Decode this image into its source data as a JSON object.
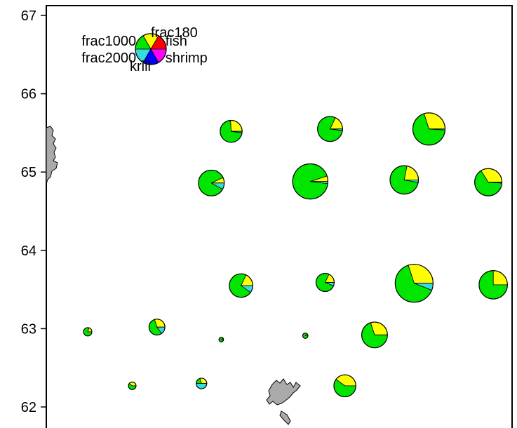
{
  "chart_data": {
    "type": "pie",
    "subtype": "pie-map",
    "title": "",
    "xlabel": "",
    "ylabel": "",
    "ylim": [
      61.8,
      67.1
    ],
    "y_ticks": [
      {
        "value": 62,
        "label": "62"
      },
      {
        "value": 63,
        "label": "63"
      },
      {
        "value": 64,
        "label": "64"
      },
      {
        "value": 65,
        "label": "65"
      },
      {
        "value": 66,
        "label": "66"
      },
      {
        "value": 67,
        "label": "67"
      }
    ],
    "grid": false,
    "legend_position": "top-left",
    "categories": [
      "fish",
      "frac180",
      "frac1000",
      "frac2000",
      "krill",
      "shrimp"
    ],
    "colors": {
      "fish": "#ff0000",
      "frac180": "#ffff00",
      "frac1000": "#00e600",
      "frac2000": "#33dddd",
      "krill": "#0000ff",
      "shrimp": "#ff00ff"
    },
    "land_color": "#aaaaaa",
    "land_features": [
      "shetland-land",
      "faroe-land"
    ],
    "legend": {
      "items": [
        {
          "label": "fish",
          "category": "fish"
        },
        {
          "label": "frac180",
          "category": "frac180"
        },
        {
          "label": "frac1000",
          "category": "frac1000"
        },
        {
          "label": "frac2000",
          "category": "frac2000"
        },
        {
          "label": "krill",
          "category": "krill"
        },
        {
          "label": "shrimp",
          "category": "shrimp"
        }
      ]
    },
    "stations": [
      {
        "lon_index": 3,
        "lat": 65.52,
        "size": 0.58,
        "values": {
          "fish": 0,
          "frac180": 0.26,
          "frac1000": 0.72,
          "frac2000": 0.02,
          "krill": 0,
          "shrimp": 0
        }
      },
      {
        "lon_index": 5,
        "lat": 65.55,
        "size": 0.66,
        "values": {
          "fish": 0,
          "frac180": 0.18,
          "frac1000": 0.8,
          "frac2000": 0.02,
          "krill": 0,
          "shrimp": 0
        }
      },
      {
        "lon_index": 7,
        "lat": 65.55,
        "size": 0.85,
        "values": {
          "fish": 0,
          "frac180": 0.3,
          "frac1000": 0.69,
          "frac2000": 0.01,
          "krill": 0,
          "shrimp": 0
        }
      },
      {
        "lon_index": 2.6,
        "lat": 64.86,
        "size": 0.68,
        "values": {
          "fish": 0,
          "frac180": 0.07,
          "frac1000": 0.85,
          "frac2000": 0.08,
          "krill": 0,
          "shrimp": 0
        }
      },
      {
        "lon_index": 4.6,
        "lat": 64.88,
        "size": 0.93,
        "values": {
          "fish": 0,
          "frac180": 0.05,
          "frac1000": 0.93,
          "frac2000": 0.02,
          "krill": 0,
          "shrimp": 0
        }
      },
      {
        "lon_index": 6.5,
        "lat": 64.9,
        "size": 0.75,
        "values": {
          "fish": 0,
          "frac180": 0.22,
          "frac1000": 0.75,
          "frac2000": 0.03,
          "krill": 0,
          "shrimp": 0
        }
      },
      {
        "lon_index": 8.2,
        "lat": 64.87,
        "size": 0.72,
        "values": {
          "fish": 0,
          "frac180": 0.34,
          "frac1000": 0.65,
          "frac2000": 0.01,
          "krill": 0,
          "shrimp": 0
        }
      },
      {
        "lon_index": 3.2,
        "lat": 63.55,
        "size": 0.62,
        "values": {
          "fish": 0,
          "frac180": 0.18,
          "frac1000": 0.72,
          "frac2000": 0.1,
          "krill": 0,
          "shrimp": 0
        }
      },
      {
        "lon_index": 4.9,
        "lat": 63.59,
        "size": 0.48,
        "values": {
          "fish": 0,
          "frac180": 0.18,
          "frac1000": 0.76,
          "frac2000": 0.06,
          "krill": 0,
          "shrimp": 0
        }
      },
      {
        "lon_index": 6.7,
        "lat": 63.58,
        "size": 1.0,
        "values": {
          "fish": 0,
          "frac180": 0.3,
          "frac1000": 0.64,
          "frac2000": 0.06,
          "krill": 0,
          "shrimp": 0
        }
      },
      {
        "lon_index": 8.3,
        "lat": 63.56,
        "size": 0.75,
        "values": {
          "fish": 0,
          "frac180": 0.25,
          "frac1000": 0.75,
          "frac2000": 0,
          "krill": 0,
          "shrimp": 0
        }
      },
      {
        "lon_index": 0.1,
        "lat": 62.96,
        "size": 0.22,
        "values": {
          "fish": 0,
          "frac180": 0.2,
          "frac1000": 0.8,
          "frac2000": 0,
          "krill": 0,
          "shrimp": 0
        }
      },
      {
        "lon_index": 1.5,
        "lat": 63.02,
        "size": 0.42,
        "values": {
          "fish": 0,
          "frac180": 0.3,
          "frac1000": 0.55,
          "frac2000": 0.15,
          "krill": 0,
          "shrimp": 0
        }
      },
      {
        "lon_index": 2.8,
        "lat": 62.86,
        "size": 0.12,
        "values": {
          "fish": 0,
          "frac180": 0.1,
          "frac1000": 0.9,
          "frac2000": 0,
          "krill": 0,
          "shrimp": 0
        }
      },
      {
        "lon_index": 4.5,
        "lat": 62.91,
        "size": 0.14,
        "values": {
          "fish": 0,
          "frac180": 0.15,
          "frac1000": 0.85,
          "frac2000": 0,
          "krill": 0,
          "shrimp": 0
        }
      },
      {
        "lon_index": 5.9,
        "lat": 62.92,
        "size": 0.68,
        "values": {
          "fish": 0,
          "frac180": 0.3,
          "frac1000": 0.7,
          "frac2000": 0,
          "krill": 0,
          "shrimp": 0
        }
      },
      {
        "lon_index": 1.0,
        "lat": 62.27,
        "size": 0.2,
        "values": {
          "fish": 0,
          "frac180": 0.4,
          "frac1000": 0.6,
          "frac2000": 0,
          "krill": 0,
          "shrimp": 0
        }
      },
      {
        "lon_index": 2.4,
        "lat": 62.3,
        "size": 0.28,
        "values": {
          "fish": 0,
          "frac180": 0.3,
          "frac1000": 0.2,
          "frac2000": 0.5,
          "krill": 0,
          "shrimp": 0
        }
      },
      {
        "lon_index": 5.3,
        "lat": 62.27,
        "size": 0.58,
        "values": {
          "fish": 0,
          "frac180": 0.4,
          "frac1000": 0.6,
          "frac2000": 0,
          "krill": 0,
          "shrimp": 0
        }
      }
    ]
  }
}
